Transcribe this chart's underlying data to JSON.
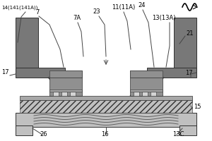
{
  "bg_color": "#ffffff",
  "gray_dark": "#787878",
  "gray_medium": "#909090",
  "gray_light": "#c0c0c0",
  "gray_lighter": "#d4d4d4",
  "gray_base": "#a8a8a8",
  "outline_color": "#303030",
  "labels": {
    "14": "14(141(141A))",
    "7": "7",
    "7A": "7A",
    "23": "23",
    "11": "11(11A)",
    "24": "24",
    "13A": "13(13A)",
    "21": "21",
    "17L": "17",
    "17R": "17",
    "15": "15",
    "16": "16",
    "26": "26",
    "13C": "13C"
  },
  "label_fontsize": 6.0,
  "fig_width": 3.0,
  "fig_height": 2.0,
  "dpi": 100
}
